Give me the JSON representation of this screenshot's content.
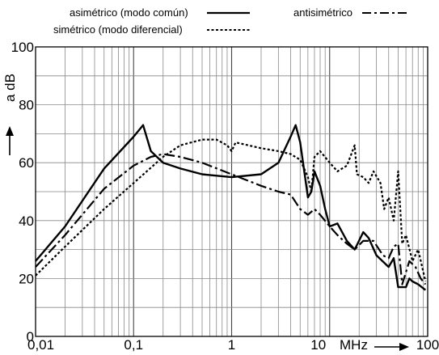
{
  "chart_data": {
    "type": "line",
    "title": "",
    "xlabel": "MHz",
    "ylabel": "a dB",
    "x_scale": "log",
    "xlim": [
      0.01,
      100
    ],
    "ylim": [
      0,
      100
    ],
    "grid": true,
    "legend_position": "top",
    "x_ticks": [
      "0,01",
      "0,1",
      "1",
      "10",
      "100"
    ],
    "y_ticks": [
      "0",
      "20",
      "40",
      "60",
      "80",
      "100"
    ],
    "series": [
      {
        "name": "asimétrico (modo común)",
        "style": "solid",
        "points": [
          [
            0.01,
            26
          ],
          [
            0.02,
            38
          ],
          [
            0.05,
            58
          ],
          [
            0.1,
            69
          ],
          [
            0.125,
            73
          ],
          [
            0.15,
            64
          ],
          [
            0.2,
            60
          ],
          [
            0.3,
            58
          ],
          [
            0.5,
            56
          ],
          [
            1,
            55
          ],
          [
            2,
            56
          ],
          [
            3,
            60
          ],
          [
            4,
            69
          ],
          [
            4.5,
            73
          ],
          [
            5,
            67
          ],
          [
            6,
            48
          ],
          [
            6.5,
            50
          ],
          [
            7,
            57
          ],
          [
            8,
            52
          ],
          [
            9,
            44
          ],
          [
            10,
            38
          ],
          [
            12,
            39
          ],
          [
            15,
            33
          ],
          [
            18,
            30
          ],
          [
            22,
            36
          ],
          [
            25,
            34
          ],
          [
            30,
            28
          ],
          [
            40,
            24
          ],
          [
            45,
            27
          ],
          [
            50,
            17
          ],
          [
            60,
            17
          ],
          [
            65,
            20
          ],
          [
            70,
            19
          ],
          [
            80,
            18
          ],
          [
            95,
            16
          ]
        ]
      },
      {
        "name": "simétrico (modo diferencial)",
        "style": "dotted",
        "points": [
          [
            0.01,
            21
          ],
          [
            0.02,
            31
          ],
          [
            0.05,
            44
          ],
          [
            0.1,
            53
          ],
          [
            0.2,
            62
          ],
          [
            0.3,
            66
          ],
          [
            0.5,
            68
          ],
          [
            0.7,
            68
          ],
          [
            0.9,
            66
          ],
          [
            1,
            64
          ],
          [
            1.1,
            67
          ],
          [
            2,
            65
          ],
          [
            3,
            64
          ],
          [
            4,
            63
          ],
          [
            5,
            61
          ],
          [
            6,
            55
          ],
          [
            6.5,
            50
          ],
          [
            7,
            62
          ],
          [
            8,
            64
          ],
          [
            10,
            60
          ],
          [
            12,
            57
          ],
          [
            15,
            59
          ],
          [
            18,
            66
          ],
          [
            19,
            56
          ],
          [
            22,
            55
          ],
          [
            25,
            53
          ],
          [
            28,
            57
          ],
          [
            33,
            53
          ],
          [
            36,
            44
          ],
          [
            40,
            48
          ],
          [
            45,
            40
          ],
          [
            50,
            57
          ],
          [
            55,
            32
          ],
          [
            60,
            35
          ],
          [
            70,
            26
          ],
          [
            80,
            30
          ],
          [
            95,
            19
          ]
        ]
      },
      {
        "name": "antisimétrico",
        "style": "dashed",
        "points": [
          [
            0.01,
            24
          ],
          [
            0.02,
            35
          ],
          [
            0.05,
            51
          ],
          [
            0.1,
            59
          ],
          [
            0.15,
            62
          ],
          [
            0.2,
            63
          ],
          [
            0.3,
            62
          ],
          [
            0.5,
            60
          ],
          [
            1,
            56
          ],
          [
            2,
            52
          ],
          [
            3,
            50
          ],
          [
            4,
            49
          ],
          [
            5,
            44
          ],
          [
            6,
            42
          ],
          [
            7,
            44
          ],
          [
            8,
            42
          ],
          [
            10,
            38
          ],
          [
            12,
            35
          ],
          [
            15,
            32
          ],
          [
            18,
            30
          ],
          [
            22,
            33
          ],
          [
            28,
            33
          ],
          [
            35,
            28
          ],
          [
            40,
            27
          ],
          [
            45,
            31
          ],
          [
            50,
            32
          ],
          [
            55,
            18
          ],
          [
            65,
            26
          ],
          [
            75,
            24
          ],
          [
            85,
            20
          ],
          [
            95,
            18
          ]
        ]
      }
    ]
  }
}
